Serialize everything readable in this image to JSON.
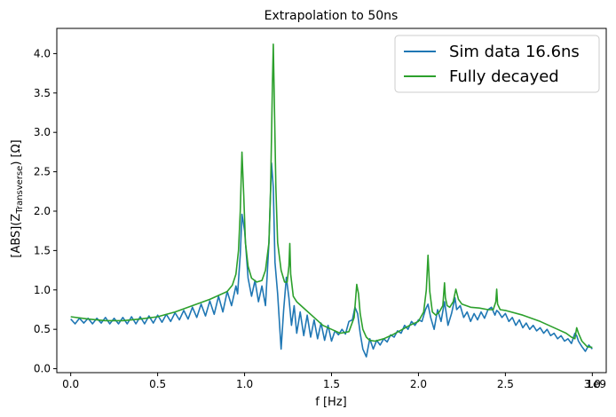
{
  "chart_data": {
    "type": "line",
    "title": "Extrapolation to 50ns",
    "xlabel": "f [Hz]",
    "ylabel": "[ABS](Z",
    "ylabel_sub": "Transverse",
    "ylabel_tail": ") [Ω]",
    "x_offset_label": "1e9",
    "xlim": [
      -0.08,
      3.08
    ],
    "ylim": [
      -0.05,
      4.32
    ],
    "x_ticks": [
      0.0,
      0.5,
      1.0,
      1.5,
      2.0,
      2.5,
      3.0
    ],
    "x_tick_labels": [
      "0.0",
      "0.5",
      "1.0",
      "1.5",
      "2.0",
      "2.5",
      "3.0"
    ],
    "y_ticks": [
      0.0,
      0.5,
      1.0,
      1.5,
      2.0,
      2.5,
      3.0,
      3.5,
      4.0
    ],
    "y_tick_labels": [
      "0.0",
      "0.5",
      "1.0",
      "1.5",
      "2.0",
      "2.5",
      "3.0",
      "3.5",
      "4.0"
    ],
    "grid": false,
    "legend_position": "top-right",
    "series": [
      {
        "name": "Sim data 16.6ns",
        "color": "#1f77b4",
        "x": [
          0.0,
          0.025,
          0.05,
          0.075,
          0.1,
          0.125,
          0.15,
          0.175,
          0.2,
          0.225,
          0.25,
          0.275,
          0.3,
          0.325,
          0.35,
          0.375,
          0.4,
          0.425,
          0.45,
          0.475,
          0.5,
          0.525,
          0.55,
          0.575,
          0.6,
          0.625,
          0.65,
          0.675,
          0.7,
          0.725,
          0.75,
          0.775,
          0.8,
          0.825,
          0.85,
          0.875,
          0.9,
          0.925,
          0.95,
          0.96,
          0.975,
          0.985,
          1.0,
          1.02,
          1.04,
          1.06,
          1.08,
          1.1,
          1.12,
          1.14,
          1.155,
          1.165,
          1.175,
          1.19,
          1.21,
          1.225,
          1.24,
          1.255,
          1.27,
          1.285,
          1.3,
          1.32,
          1.34,
          1.36,
          1.38,
          1.4,
          1.42,
          1.44,
          1.46,
          1.48,
          1.5,
          1.52,
          1.54,
          1.56,
          1.58,
          1.6,
          1.62,
          1.635,
          1.65,
          1.665,
          1.68,
          1.7,
          1.72,
          1.74,
          1.76,
          1.78,
          1.8,
          1.82,
          1.84,
          1.86,
          1.88,
          1.9,
          1.92,
          1.94,
          1.96,
          1.98,
          2.0,
          2.02,
          2.04,
          2.055,
          2.07,
          2.09,
          2.11,
          2.13,
          2.15,
          2.16,
          2.17,
          2.19,
          2.21,
          2.22,
          2.24,
          2.26,
          2.28,
          2.3,
          2.32,
          2.34,
          2.36,
          2.38,
          2.4,
          2.42,
          2.44,
          2.45,
          2.46,
          2.48,
          2.5,
          2.52,
          2.54,
          2.56,
          2.58,
          2.6,
          2.62,
          2.64,
          2.66,
          2.68,
          2.7,
          2.72,
          2.74,
          2.76,
          2.78,
          2.8,
          2.82,
          2.84,
          2.86,
          2.88,
          2.9,
          2.91,
          2.92,
          2.94,
          2.96,
          2.98,
          3.0
        ],
        "y": [
          0.63,
          0.57,
          0.64,
          0.58,
          0.64,
          0.57,
          0.64,
          0.58,
          0.65,
          0.57,
          0.64,
          0.57,
          0.65,
          0.57,
          0.66,
          0.57,
          0.66,
          0.57,
          0.67,
          0.58,
          0.68,
          0.59,
          0.69,
          0.6,
          0.71,
          0.62,
          0.74,
          0.63,
          0.78,
          0.65,
          0.82,
          0.67,
          0.86,
          0.69,
          0.92,
          0.72,
          0.98,
          0.8,
          1.05,
          0.95,
          1.45,
          1.96,
          1.75,
          1.15,
          0.92,
          1.12,
          0.85,
          1.05,
          0.8,
          1.6,
          2.61,
          2.3,
          1.35,
          0.95,
          0.25,
          0.75,
          1.16,
          0.9,
          0.55,
          0.8,
          0.45,
          0.72,
          0.42,
          0.68,
          0.4,
          0.62,
          0.38,
          0.58,
          0.36,
          0.55,
          0.35,
          0.48,
          0.43,
          0.5,
          0.44,
          0.6,
          0.62,
          0.78,
          0.7,
          0.45,
          0.25,
          0.15,
          0.38,
          0.25,
          0.36,
          0.3,
          0.38,
          0.34,
          0.43,
          0.4,
          0.48,
          0.45,
          0.55,
          0.5,
          0.6,
          0.55,
          0.62,
          0.6,
          0.75,
          0.82,
          0.65,
          0.5,
          0.75,
          0.6,
          0.85,
          0.7,
          0.55,
          0.7,
          0.9,
          0.75,
          0.8,
          0.65,
          0.72,
          0.6,
          0.7,
          0.62,
          0.72,
          0.64,
          0.75,
          0.78,
          0.68,
          0.74,
          0.72,
          0.65,
          0.7,
          0.6,
          0.65,
          0.55,
          0.62,
          0.52,
          0.58,
          0.5,
          0.55,
          0.48,
          0.52,
          0.45,
          0.5,
          0.42,
          0.45,
          0.38,
          0.42,
          0.35,
          0.38,
          0.32,
          0.45,
          0.42,
          0.35,
          0.28,
          0.22,
          0.3,
          0.25
        ]
      },
      {
        "name": "Fully decayed",
        "color": "#2ca02c",
        "x": [
          0.0,
          0.1,
          0.2,
          0.3,
          0.4,
          0.5,
          0.6,
          0.7,
          0.8,
          0.9,
          0.93,
          0.95,
          0.965,
          0.975,
          0.985,
          0.995,
          1.005,
          1.02,
          1.04,
          1.07,
          1.1,
          1.12,
          1.14,
          1.15,
          1.16,
          1.165,
          1.17,
          1.18,
          1.19,
          1.21,
          1.23,
          1.245,
          1.255,
          1.26,
          1.265,
          1.28,
          1.3,
          1.35,
          1.4,
          1.45,
          1.5,
          1.55,
          1.6,
          1.63,
          1.645,
          1.655,
          1.665,
          1.68,
          1.7,
          1.72,
          1.75,
          1.8,
          1.85,
          1.9,
          1.95,
          2.0,
          2.03,
          2.045,
          2.055,
          2.065,
          2.08,
          2.1,
          2.12,
          2.14,
          2.15,
          2.155,
          2.165,
          2.18,
          2.2,
          2.215,
          2.23,
          2.25,
          2.3,
          2.35,
          2.4,
          2.43,
          2.445,
          2.45,
          2.455,
          2.47,
          2.5,
          2.6,
          2.7,
          2.8,
          2.85,
          2.88,
          2.9,
          2.91,
          2.92,
          2.94,
          2.97,
          3.0
        ],
        "y": [
          0.66,
          0.63,
          0.61,
          0.61,
          0.63,
          0.66,
          0.72,
          0.8,
          0.88,
          0.98,
          1.06,
          1.2,
          1.5,
          2.0,
          2.75,
          2.2,
          1.6,
          1.3,
          1.15,
          1.1,
          1.12,
          1.25,
          1.6,
          2.3,
          3.6,
          4.12,
          3.5,
          2.3,
          1.6,
          1.25,
          1.1,
          1.1,
          1.3,
          1.59,
          1.2,
          0.92,
          0.85,
          0.75,
          0.65,
          0.55,
          0.5,
          0.45,
          0.47,
          0.65,
          1.07,
          0.95,
          0.7,
          0.5,
          0.4,
          0.36,
          0.35,
          0.38,
          0.43,
          0.49,
          0.55,
          0.6,
          0.72,
          1.0,
          1.44,
          0.98,
          0.72,
          0.68,
          0.72,
          0.8,
          1.09,
          0.9,
          0.8,
          0.78,
          0.85,
          1.01,
          0.88,
          0.82,
          0.78,
          0.77,
          0.75,
          0.75,
          0.85,
          1.01,
          0.82,
          0.75,
          0.74,
          0.68,
          0.6,
          0.5,
          0.45,
          0.4,
          0.38,
          0.52,
          0.45,
          0.35,
          0.28,
          0.27
        ]
      }
    ]
  }
}
